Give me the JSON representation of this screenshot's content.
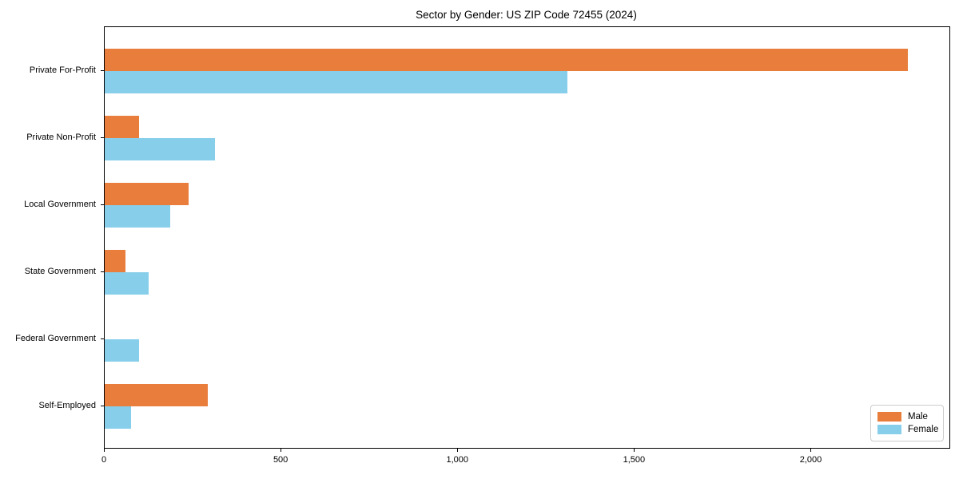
{
  "chart_data": {
    "type": "bar",
    "orientation": "horizontal",
    "title": "Sector by Gender: US ZIP Code 72455 (2024)",
    "categories": [
      "Private For-Profit",
      "Private Non-Profit",
      "Local Government",
      "State Government",
      "Federal Government",
      "Self-Employed"
    ],
    "series": [
      {
        "name": "Male",
        "color": "#e87d3c",
        "values": [
          2272,
          97,
          237,
          59,
          0,
          292
        ]
      },
      {
        "name": "Female",
        "color": "#87ceeb",
        "values": [
          1310,
          313,
          185,
          124,
          97,
          75
        ]
      }
    ],
    "xlabel": "",
    "ylabel": "",
    "xlim": [
      0,
      2390
    ],
    "xticks": [
      {
        "value": 0,
        "label": "0"
      },
      {
        "value": 500,
        "label": "500"
      },
      {
        "value": 1000,
        "label": "1,000"
      },
      {
        "value": 1500,
        "label": "1,500"
      },
      {
        "value": 2000,
        "label": "2,000"
      }
    ],
    "grid": false,
    "legend_position": "lower right"
  }
}
